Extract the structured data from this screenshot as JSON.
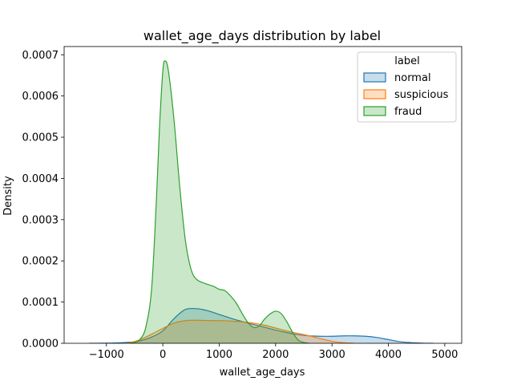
{
  "chart_data": {
    "type": "area",
    "title": "wallet_age_days distribution by label",
    "xlabel": "wallet_age_days",
    "ylabel": "Density",
    "xlim": [
      -1750,
      5300
    ],
    "ylim": [
      0,
      0.00072
    ],
    "xticks": [
      -1000,
      0,
      1000,
      2000,
      3000,
      4000,
      5000
    ],
    "xtick_labels": [
      "−1000",
      "0",
      "1000",
      "2000",
      "3000",
      "4000",
      "5000"
    ],
    "yticks": [
      0,
      0.0001,
      0.0002,
      0.0003,
      0.0004,
      0.0005,
      0.0006,
      0.0007
    ],
    "ytick_labels": [
      "0.0000",
      "0.0001",
      "0.0002",
      "0.0003",
      "0.0004",
      "0.0005",
      "0.0006",
      "0.0007"
    ],
    "grid": false,
    "legend": {
      "title": "label",
      "position": "top-right"
    },
    "series": [
      {
        "name": "normal",
        "color": "#1f77b4",
        "points": [
          [
            -1300,
            0
          ],
          [
            -1000,
            3e-07
          ],
          [
            -800,
            1e-06
          ],
          [
            -600,
            2.5e-06
          ],
          [
            -400,
            6e-06
          ],
          [
            -200,
            1.5e-05
          ],
          [
            0,
            3e-05
          ],
          [
            200,
            6e-05
          ],
          [
            400,
            8.2e-05
          ],
          [
            600,
            8.4e-05
          ],
          [
            800,
            7.9e-05
          ],
          [
            1000,
            7e-05
          ],
          [
            1200,
            6.1e-05
          ],
          [
            1400,
            5.3e-05
          ],
          [
            1600,
            4.6e-05
          ],
          [
            1800,
            3.9e-05
          ],
          [
            2000,
            3.2e-05
          ],
          [
            2200,
            2.6e-05
          ],
          [
            2400,
            2.1e-05
          ],
          [
            2600,
            1.8e-05
          ],
          [
            2800,
            1.7e-05
          ],
          [
            3000,
            1.7e-05
          ],
          [
            3200,
            1.8e-05
          ],
          [
            3400,
            1.8e-05
          ],
          [
            3600,
            1.7e-05
          ],
          [
            3800,
            1.4e-05
          ],
          [
            4000,
            9e-06
          ],
          [
            4200,
            4e-06
          ],
          [
            4400,
            1.5e-06
          ],
          [
            4600,
            4e-07
          ],
          [
            4800,
            0
          ]
        ]
      },
      {
        "name": "suspicious",
        "color": "#ff7f0e",
        "points": [
          [
            -700,
            0
          ],
          [
            -600,
            1e-06
          ],
          [
            -400,
            9e-06
          ],
          [
            -200,
            2.2e-05
          ],
          [
            0,
            3.6e-05
          ],
          [
            200,
            4.9e-05
          ],
          [
            400,
            5.5e-05
          ],
          [
            600,
            5.6e-05
          ],
          [
            800,
            5.5e-05
          ],
          [
            1000,
            5.5e-05
          ],
          [
            1200,
            5.4e-05
          ],
          [
            1400,
            5.2e-05
          ],
          [
            1600,
            4.9e-05
          ],
          [
            1800,
            4.4e-05
          ],
          [
            2000,
            3.7e-05
          ],
          [
            2200,
            3e-05
          ],
          [
            2400,
            2.4e-05
          ],
          [
            2600,
            1.8e-05
          ],
          [
            2800,
            1.1e-05
          ],
          [
            3000,
            5e-06
          ],
          [
            3200,
            1.5e-06
          ],
          [
            3400,
            0
          ]
        ]
      },
      {
        "name": "fraud",
        "color": "#2ca02c",
        "points": [
          [
            -600,
            0
          ],
          [
            -500,
            2e-06
          ],
          [
            -400,
            1e-05
          ],
          [
            -300,
            4e-05
          ],
          [
            -200,
            0.00013
          ],
          [
            -120,
            0.00033
          ],
          [
            -60,
            0.00052
          ],
          [
            0,
            0.00066
          ],
          [
            40,
            0.000685
          ],
          [
            100,
            0.00066
          ],
          [
            200,
            0.00054
          ],
          [
            300,
            0.00038
          ],
          [
            400,
            0.00025
          ],
          [
            500,
            0.00018
          ],
          [
            600,
            0.000155
          ],
          [
            750,
            0.000145
          ],
          [
            900,
            0.000138
          ],
          [
            1000,
            0.000131
          ],
          [
            1100,
            0.000128
          ],
          [
            1200,
            0.000115
          ],
          [
            1300,
            9.8e-05
          ],
          [
            1400,
            7.4e-05
          ],
          [
            1500,
            5.2e-05
          ],
          [
            1600,
            3.9e-05
          ],
          [
            1700,
            4.1e-05
          ],
          [
            1800,
            5.8e-05
          ],
          [
            1900,
            7.1e-05
          ],
          [
            2000,
            7.8e-05
          ],
          [
            2100,
            7.2e-05
          ],
          [
            2200,
            5.2e-05
          ],
          [
            2300,
            2.7e-05
          ],
          [
            2400,
            8e-06
          ],
          [
            2500,
            2e-06
          ],
          [
            2600,
            0
          ]
        ]
      }
    ]
  }
}
